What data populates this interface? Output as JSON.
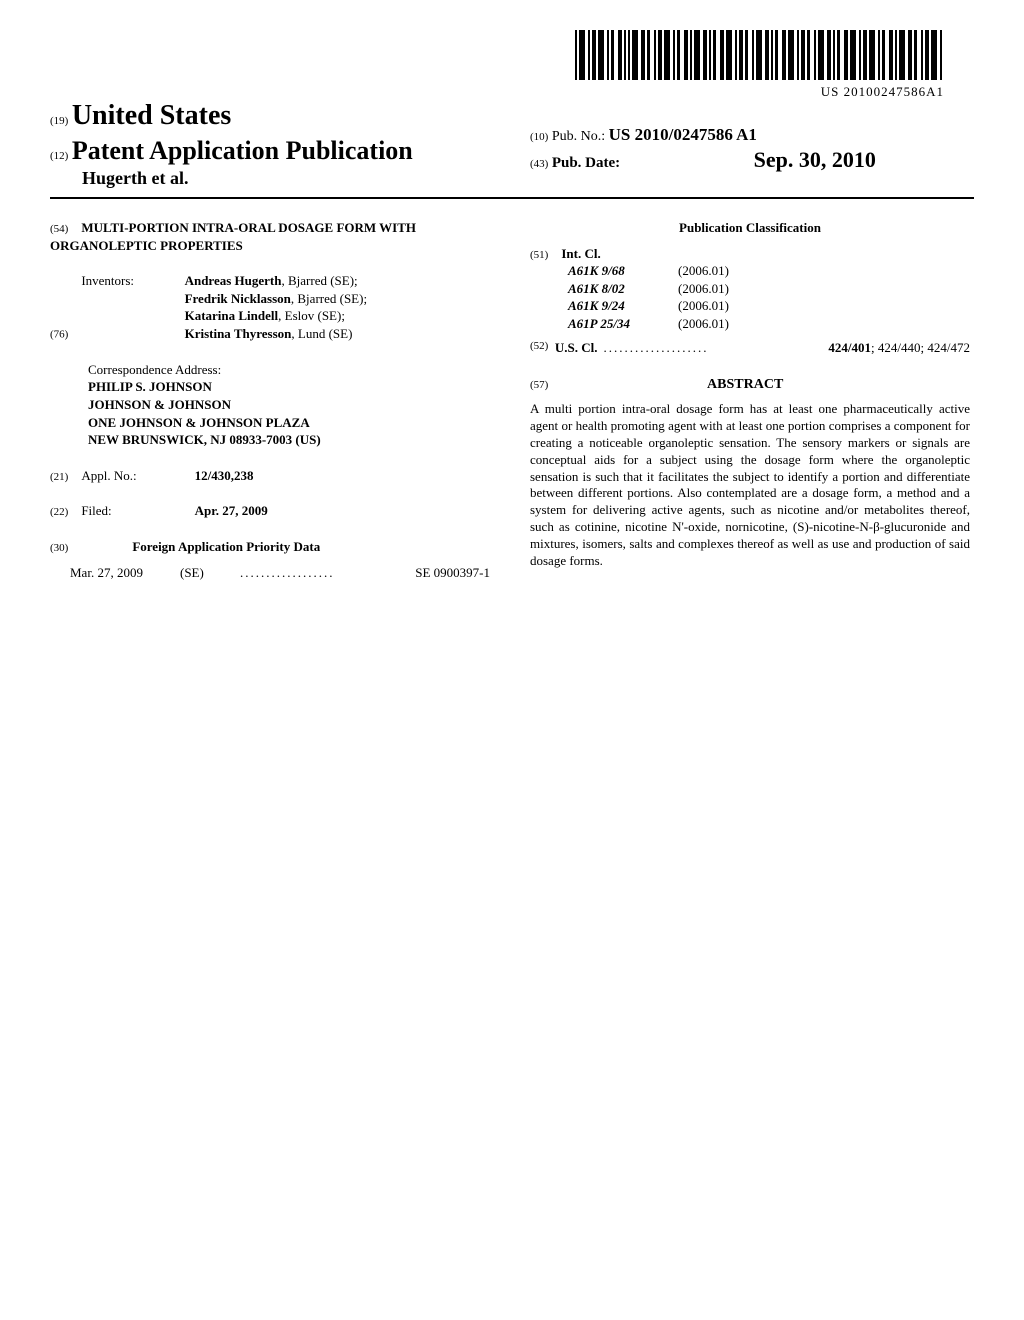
{
  "barcode_text": "US 20100247586A1",
  "header": {
    "country_num": "(19)",
    "country": "United States",
    "pub_type_num": "(12)",
    "pub_type": "Patent Application Publication",
    "authors_line": "Hugerth et al.",
    "pub_no_num": "(10)",
    "pub_no_label": "Pub. No.:",
    "pub_no": "US 2010/0247586 A1",
    "pub_date_num": "(43)",
    "pub_date_label": "Pub. Date:",
    "pub_date": "Sep. 30, 2010"
  },
  "left": {
    "title_num": "(54)",
    "title": "MULTI-PORTION INTRA-ORAL DOSAGE FORM WITH ORGANOLEPTIC PROPERTIES",
    "inventors_num": "(76)",
    "inventors_label": "Inventors:",
    "inventors": [
      {
        "name": "Andreas Hugerth",
        "loc": "Bjarred (SE);"
      },
      {
        "name": "Fredrik Nicklasson",
        "loc": "Bjarred (SE);"
      },
      {
        "name": "Katarina Lindell",
        "loc": "Eslov (SE);"
      },
      {
        "name": "Kristina Thyresson",
        "loc": "Lund (SE)"
      }
    ],
    "correspondence_label": "Correspondence Address:",
    "correspondence": [
      "PHILIP S. JOHNSON",
      "JOHNSON & JOHNSON",
      "ONE JOHNSON & JOHNSON PLAZA",
      "NEW BRUNSWICK, NJ 08933-7003 (US)"
    ],
    "appl_num": "(21)",
    "appl_label": "Appl. No.:",
    "appl_value": "12/430,238",
    "filed_num": "(22)",
    "filed_label": "Filed:",
    "filed_value": "Apr. 27, 2009",
    "foreign_num": "(30)",
    "foreign_title": "Foreign Application Priority Data",
    "foreign_date": "Mar. 27, 2009",
    "foreign_country": "(SE)",
    "foreign_number": "SE 0900397-1"
  },
  "right": {
    "pub_class_title": "Publication Classification",
    "intcl_num": "(51)",
    "intcl_label": "Int. Cl.",
    "intcl": [
      {
        "code": "A61K 9/68",
        "year": "(2006.01)"
      },
      {
        "code": "A61K 8/02",
        "year": "(2006.01)"
      },
      {
        "code": "A61K 9/24",
        "year": "(2006.01)"
      },
      {
        "code": "A61P 25/34",
        "year": "(2006.01)"
      }
    ],
    "uscl_num": "(52)",
    "uscl_label": "U.S. Cl.",
    "uscl_bold": "424/401",
    "uscl_rest": "; 424/440; 424/472",
    "abstract_num": "(57)",
    "abstract_title": "ABSTRACT",
    "abstract_body": "A multi portion intra-oral dosage form has at least one pharmaceutically active agent or health promoting agent with at least one portion comprises a component for creating a noticeable organoleptic sensation. The sensory markers or signals are conceptual aids for a subject using the dosage form where the organoleptic sensation is such that it facilitates the subject to identify a portion and differentiate between different portions. Also contemplated are a dosage form, a method and a system for delivering active agents, such as nicotine and/or metabolites thereof, such as cotinine, nicotine N'-oxide, nornicotine, (S)-nicotine-N-β-glucuronide and mixtures, isomers, salts and complexes thereof as well as use and production of said dosage forms."
  }
}
